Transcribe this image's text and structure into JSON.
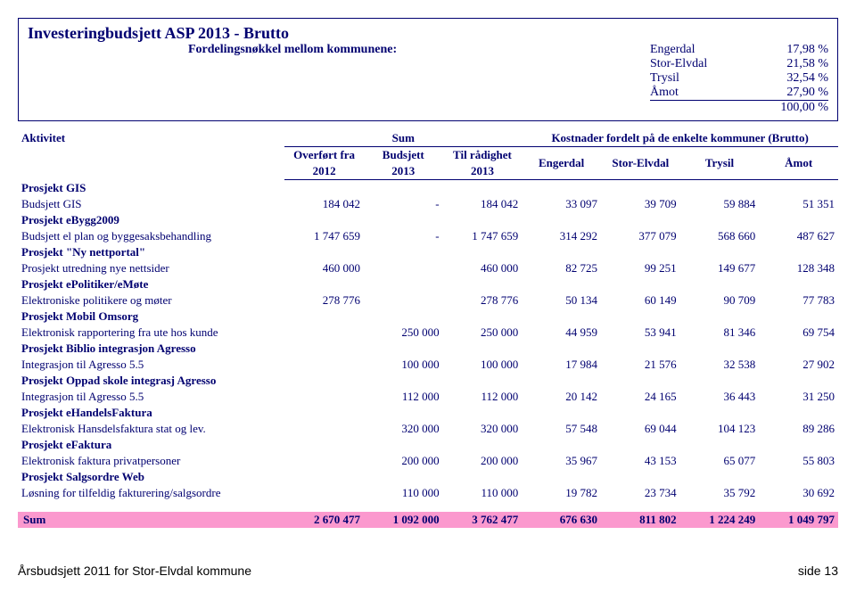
{
  "colors": {
    "text": "#000070",
    "sum_bg": "#fb99ce",
    "border": "#000070",
    "bg": "#ffffff"
  },
  "header": {
    "title": "Investeringbudsjett ASP 2013 - Brutto",
    "dist_label": "Fordelingsnøkkel mellom kommunene:",
    "rows": [
      {
        "name": "Engerdal",
        "pct": "17,98 %"
      },
      {
        "name": "Stor-Elvdal",
        "pct": "21,58 %"
      },
      {
        "name": "Trysil",
        "pct": "32,54 %"
      },
      {
        "name": "Åmot",
        "pct": "27,90 %"
      }
    ],
    "total": "100,00 %"
  },
  "table": {
    "col_activity": "Aktivitet",
    "col_sum": "Sum",
    "col_costs": "Kostnader fordelt på de enkelte kommuner (Brutto)",
    "sub1": "Overført fra",
    "sub1b": "2012",
    "sub2": "Budsjett",
    "sub2b": "2013",
    "sub3": "Til rådighet",
    "sub3b": "2013",
    "sub4": "Engerdal",
    "sub5": "Stor-Elvdal",
    "sub6": "Trysil",
    "sub7": "Åmot",
    "rows": [
      {
        "type": "project",
        "label": "Prosjekt GIS"
      },
      {
        "type": "data",
        "label": "Budsjett GIS",
        "v": [
          "184 042",
          "-",
          "184 042",
          "33 097",
          "39 709",
          "59 884",
          "51 351"
        ]
      },
      {
        "type": "project",
        "label": "Prosjekt eBygg2009"
      },
      {
        "type": "data",
        "label": "Budsjett el plan og byggesaksbehandling",
        "v": [
          "1 747 659",
          "-",
          "1 747 659",
          "314 292",
          "377 079",
          "568 660",
          "487 627"
        ]
      },
      {
        "type": "project",
        "label": "Prosjekt \"Ny nettportal\""
      },
      {
        "type": "data",
        "label": "Prosjekt utredning nye nettsider",
        "v": [
          "460 000",
          "",
          "460 000",
          "82 725",
          "99 251",
          "149 677",
          "128 348"
        ]
      },
      {
        "type": "project",
        "label": "Prosjekt ePolitiker/eMøte"
      },
      {
        "type": "data",
        "label": "Elektroniske politikere og møter",
        "v": [
          "278 776",
          "",
          "278 776",
          "50 134",
          "60 149",
          "90 709",
          "77 783"
        ]
      },
      {
        "type": "project",
        "label": "Prosjekt Mobil Omsorg"
      },
      {
        "type": "data",
        "label": "Elektronisk rapportering fra ute hos kunde",
        "v": [
          "",
          "250 000",
          "250 000",
          "44 959",
          "53 941",
          "81 346",
          "69 754"
        ]
      },
      {
        "type": "project",
        "label": "Prosjekt Biblio integrasjon Agresso"
      },
      {
        "type": "data",
        "label": "Integrasjon til Agresso 5.5",
        "v": [
          "",
          "100 000",
          "100 000",
          "17 984",
          "21 576",
          "32 538",
          "27 902"
        ]
      },
      {
        "type": "project",
        "label": "Prosjekt Oppad skole integrasj Agresso"
      },
      {
        "type": "data",
        "label": "Integrasjon til Agresso 5.5",
        "v": [
          "",
          "112 000",
          "112 000",
          "20 142",
          "24 165",
          "36 443",
          "31 250"
        ]
      },
      {
        "type": "project",
        "label": "Prosjekt eHandelsFaktura"
      },
      {
        "type": "data",
        "label": "Elektronisk Hansdelsfaktura stat og lev.",
        "v": [
          "",
          "320 000",
          "320 000",
          "57 548",
          "69 044",
          "104 123",
          "89 286"
        ]
      },
      {
        "type": "project",
        "label": "Prosjekt eFaktura"
      },
      {
        "type": "data",
        "label": "Elektronisk faktura privatpersoner",
        "v": [
          "",
          "200 000",
          "200 000",
          "35 967",
          "43 153",
          "65 077",
          "55 803"
        ]
      },
      {
        "type": "project",
        "label": "Prosjekt Salgsordre Web"
      },
      {
        "type": "data",
        "label": "Løsning for tilfeldig fakturering/salgsordre",
        "v": [
          "",
          "110 000",
          "110 000",
          "19 782",
          "23 734",
          "35 792",
          "30 692"
        ]
      }
    ],
    "sum_label": "Sum",
    "sum_values": [
      "2 670 477",
      "1 092 000",
      "3 762 477",
      "676 630",
      "811 802",
      "1 224 249",
      "1 049 797"
    ]
  },
  "footer": {
    "left": "Årsbudsjett 2011 for Stor-Elvdal kommune",
    "right": "side 13"
  }
}
